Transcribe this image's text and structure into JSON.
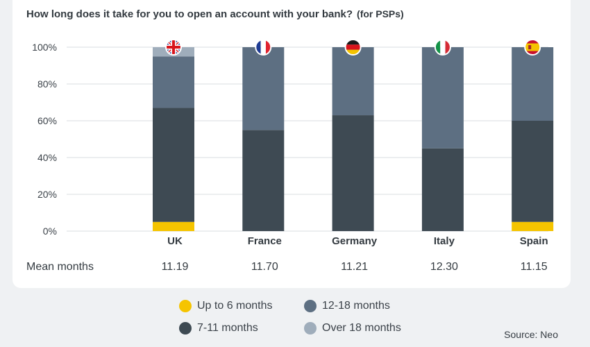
{
  "chart_data": {
    "type": "bar",
    "stacked": true,
    "title": "How long does it take for you to open an account with your bank?",
    "subtitle": "(for PSPs)",
    "categories": [
      "UK",
      "France",
      "Germany",
      "Italy",
      "Spain"
    ],
    "series": [
      {
        "name": "Up to 6 months",
        "color": "#f5c400",
        "values": [
          5,
          0,
          0,
          0,
          5
        ]
      },
      {
        "name": "7-11 months",
        "color": "#3e4a53",
        "values": [
          62,
          55,
          63,
          45,
          55
        ]
      },
      {
        "name": "12-18 months",
        "color": "#5d6f82",
        "values": [
          28,
          45,
          37,
          55,
          40
        ]
      },
      {
        "name": "Over 18 months",
        "color": "#9fadbb",
        "values": [
          5,
          0,
          0,
          0,
          0
        ]
      }
    ],
    "ylim": [
      0,
      100
    ],
    "yticks": [
      "0%",
      "20%",
      "40%",
      "60%",
      "80%",
      "100%"
    ],
    "grid": true,
    "legend_position": "bottom",
    "flags": [
      "uk-flag-icon",
      "france-flag-icon",
      "germany-flag-icon",
      "italy-flag-icon",
      "spain-flag-icon"
    ],
    "mean_label": "Mean months",
    "mean_values": [
      "11.19",
      "11.70",
      "11.21",
      "12.30",
      "11.15"
    ]
  },
  "source": "Source: Neo"
}
